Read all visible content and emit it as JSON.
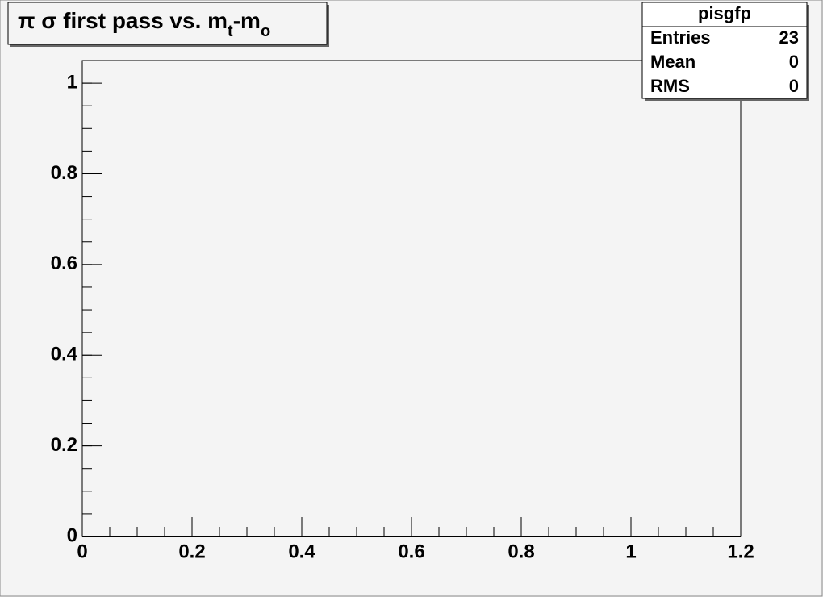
{
  "chart_data": {
    "type": "histogram",
    "title": [
      "π σ first pass vs. m",
      "t",
      "-m",
      "o"
    ],
    "stats": {
      "name": "pisgfp",
      "rows": [
        [
          "Entries",
          "23"
        ],
        [
          "Mean",
          "0"
        ],
        [
          "RMS",
          "0"
        ]
      ]
    },
    "xlim": [
      0,
      1.2
    ],
    "xticks": [
      0,
      0.2,
      0.4,
      0.6,
      0.8,
      1,
      1.2
    ],
    "ylim": [
      0,
      1.05
    ],
    "yticks": [
      0,
      0.2,
      0.4,
      0.6,
      0.8,
      1
    ]
  }
}
